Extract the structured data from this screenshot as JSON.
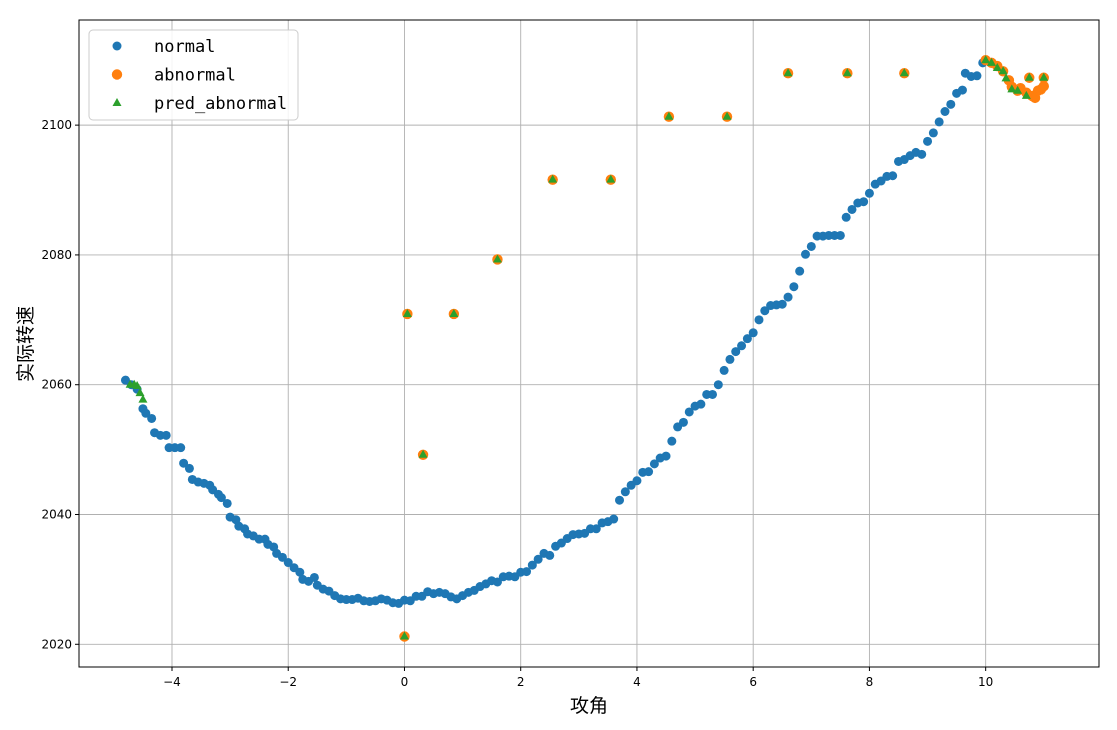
{
  "chart_data": {
    "type": "scatter",
    "xlabel": "攻角",
    "ylabel": "实际转速",
    "xlim": [
      -5.6,
      11.95
    ],
    "ylim": [
      2016.5,
      2116.2
    ],
    "x_ticks": [
      -4,
      -2,
      0,
      2,
      4,
      6,
      8,
      10
    ],
    "y_ticks": [
      2020,
      2040,
      2060,
      2080,
      2100
    ],
    "grid": true,
    "legend_position": "top-left",
    "colors": {
      "normal": "#1f77b4",
      "abnormal": "#ff7f0e",
      "pred_abnormal": "#2ca02c"
    },
    "series": [
      {
        "name": "normal",
        "marker": "circle",
        "points": [
          [
            -4.8,
            2060.7
          ],
          [
            -4.7,
            2060.0
          ],
          [
            -4.6,
            2059.3
          ],
          [
            -4.5,
            2056.3
          ],
          [
            -4.45,
            2055.6
          ],
          [
            -4.35,
            2054.8
          ],
          [
            -4.3,
            2052.6
          ],
          [
            -4.2,
            2052.2
          ],
          [
            -4.1,
            2052.2
          ],
          [
            -4.05,
            2050.3
          ],
          [
            -3.95,
            2050.3
          ],
          [
            -3.85,
            2050.3
          ],
          [
            -3.8,
            2047.9
          ],
          [
            -3.7,
            2047.1
          ],
          [
            -3.65,
            2045.4
          ],
          [
            -3.55,
            2045.0
          ],
          [
            -3.45,
            2044.8
          ],
          [
            -3.35,
            2044.5
          ],
          [
            -3.3,
            2043.8
          ],
          [
            -3.2,
            2043.1
          ],
          [
            -3.15,
            2042.6
          ],
          [
            -3.05,
            2041.7
          ],
          [
            -3.0,
            2039.6
          ],
          [
            -2.9,
            2039.2
          ],
          [
            -2.85,
            2038.2
          ],
          [
            -2.75,
            2037.8
          ],
          [
            -2.7,
            2037.0
          ],
          [
            -2.6,
            2036.7
          ],
          [
            -2.5,
            2036.2
          ],
          [
            -2.4,
            2036.2
          ],
          [
            -2.35,
            2035.4
          ],
          [
            -2.25,
            2035.0
          ],
          [
            -2.2,
            2034.0
          ],
          [
            -2.1,
            2033.4
          ],
          [
            -2.0,
            2032.6
          ],
          [
            -1.9,
            2031.8
          ],
          [
            -1.8,
            2031.1
          ],
          [
            -1.75,
            2030.0
          ],
          [
            -1.65,
            2029.7
          ],
          [
            -1.55,
            2030.3
          ],
          [
            -1.5,
            2029.1
          ],
          [
            -1.4,
            2028.5
          ],
          [
            -1.3,
            2028.2
          ],
          [
            -1.2,
            2027.5
          ],
          [
            -1.1,
            2027.0
          ],
          [
            -1.0,
            2026.9
          ],
          [
            -0.9,
            2026.9
          ],
          [
            -0.8,
            2027.1
          ],
          [
            -0.7,
            2026.7
          ],
          [
            -0.6,
            2026.6
          ],
          [
            -0.5,
            2026.7
          ],
          [
            -0.4,
            2027.0
          ],
          [
            -0.3,
            2026.8
          ],
          [
            -0.2,
            2026.4
          ],
          [
            -0.1,
            2026.3
          ],
          [
            0.0,
            2026.8
          ],
          [
            0.1,
            2026.7
          ],
          [
            0.2,
            2027.4
          ],
          [
            0.3,
            2027.4
          ],
          [
            0.4,
            2028.1
          ],
          [
            0.5,
            2027.8
          ],
          [
            0.6,
            2028.0
          ],
          [
            0.7,
            2027.8
          ],
          [
            0.8,
            2027.3
          ],
          [
            0.9,
            2027.0
          ],
          [
            1.0,
            2027.5
          ],
          [
            1.1,
            2028.0
          ],
          [
            1.2,
            2028.3
          ],
          [
            1.3,
            2028.9
          ],
          [
            1.4,
            2029.3
          ],
          [
            1.5,
            2029.8
          ],
          [
            1.6,
            2029.6
          ],
          [
            1.7,
            2030.4
          ],
          [
            1.8,
            2030.5
          ],
          [
            1.9,
            2030.4
          ],
          [
            2.0,
            2031.1
          ],
          [
            2.1,
            2031.2
          ],
          [
            2.2,
            2032.2
          ],
          [
            2.3,
            2033.1
          ],
          [
            2.4,
            2034.0
          ],
          [
            2.5,
            2033.7
          ],
          [
            2.6,
            2035.1
          ],
          [
            2.7,
            2035.6
          ],
          [
            2.8,
            2036.3
          ],
          [
            2.9,
            2036.9
          ],
          [
            3.0,
            2037.0
          ],
          [
            3.1,
            2037.1
          ],
          [
            3.2,
            2037.8
          ],
          [
            3.3,
            2037.8
          ],
          [
            3.4,
            2038.7
          ],
          [
            3.5,
            2038.9
          ],
          [
            3.6,
            2039.3
          ],
          [
            3.7,
            2042.2
          ],
          [
            3.8,
            2043.5
          ],
          [
            3.9,
            2044.5
          ],
          [
            4.0,
            2045.2
          ],
          [
            4.1,
            2046.5
          ],
          [
            4.2,
            2046.6
          ],
          [
            4.3,
            2047.8
          ],
          [
            4.4,
            2048.7
          ],
          [
            4.5,
            2049.0
          ],
          [
            4.6,
            2051.3
          ],
          [
            4.7,
            2053.5
          ],
          [
            4.8,
            2054.2
          ],
          [
            4.9,
            2055.8
          ],
          [
            5.0,
            2056.7
          ],
          [
            5.1,
            2057.0
          ],
          [
            5.2,
            2058.5
          ],
          [
            5.3,
            2058.5
          ],
          [
            5.4,
            2060.0
          ],
          [
            5.5,
            2062.2
          ],
          [
            5.6,
            2063.9
          ],
          [
            5.7,
            2065.1
          ],
          [
            5.8,
            2066.0
          ],
          [
            5.9,
            2067.1
          ],
          [
            6.0,
            2068.0
          ],
          [
            6.1,
            2070.0
          ],
          [
            6.2,
            2071.4
          ],
          [
            6.3,
            2072.2
          ],
          [
            6.4,
            2072.3
          ],
          [
            6.5,
            2072.4
          ],
          [
            6.6,
            2073.5
          ],
          [
            6.7,
            2075.1
          ],
          [
            6.8,
            2077.5
          ],
          [
            6.9,
            2080.1
          ],
          [
            7.0,
            2081.3
          ],
          [
            7.1,
            2082.9
          ],
          [
            7.2,
            2082.9
          ],
          [
            7.3,
            2083.0
          ],
          [
            7.4,
            2083.0
          ],
          [
            7.5,
            2083.0
          ],
          [
            7.6,
            2085.8
          ],
          [
            7.7,
            2087.0
          ],
          [
            7.8,
            2088.0
          ],
          [
            7.9,
            2088.2
          ],
          [
            8.0,
            2089.5
          ],
          [
            8.1,
            2090.9
          ],
          [
            8.2,
            2091.4
          ],
          [
            8.3,
            2092.1
          ],
          [
            8.4,
            2092.2
          ],
          [
            8.5,
            2094.4
          ],
          [
            8.6,
            2094.7
          ],
          [
            8.7,
            2095.3
          ],
          [
            8.8,
            2095.8
          ],
          [
            8.9,
            2095.5
          ],
          [
            9.0,
            2097.5
          ],
          [
            9.1,
            2098.8
          ],
          [
            9.2,
            2100.5
          ],
          [
            9.3,
            2102.1
          ],
          [
            9.4,
            2103.2
          ],
          [
            9.5,
            2104.9
          ],
          [
            9.6,
            2105.4
          ],
          [
            9.65,
            2108.0
          ],
          [
            9.75,
            2107.5
          ],
          [
            9.85,
            2107.6
          ],
          [
            9.95,
            2109.6
          ]
        ]
      },
      {
        "name": "abnormal",
        "marker": "circle",
        "points": [
          [
            0.0,
            2021.2
          ],
          [
            0.05,
            2070.9
          ],
          [
            0.32,
            2049.2
          ],
          [
            0.85,
            2070.9
          ],
          [
            1.6,
            2079.3
          ],
          [
            2.55,
            2091.6
          ],
          [
            3.55,
            2091.6
          ],
          [
            4.55,
            2101.3
          ],
          [
            5.55,
            2101.3
          ],
          [
            6.6,
            2108.0
          ],
          [
            7.62,
            2108.0
          ],
          [
            8.6,
            2108.0
          ],
          [
            10.0,
            2110.0
          ],
          [
            10.1,
            2109.6
          ],
          [
            10.2,
            2109.1
          ],
          [
            10.3,
            2108.3
          ],
          [
            10.4,
            2106.9
          ],
          [
            10.45,
            2105.9
          ],
          [
            10.55,
            2105.3
          ],
          [
            10.6,
            2105.7
          ],
          [
            10.7,
            2105.0
          ],
          [
            10.75,
            2107.3
          ],
          [
            10.8,
            2104.5
          ],
          [
            10.85,
            2104.2
          ],
          [
            10.9,
            2105.3
          ],
          [
            10.95,
            2105.5
          ],
          [
            11.0,
            2106.0
          ],
          [
            11.0,
            2107.3
          ]
        ]
      },
      {
        "name": "pred_abnormal",
        "marker": "triangle",
        "points": [
          [
            -4.72,
            2060.0
          ],
          [
            -4.65,
            2060.0
          ],
          [
            -4.6,
            2059.8
          ],
          [
            -4.55,
            2058.7
          ],
          [
            -4.5,
            2057.7
          ],
          [
            0.0,
            2021.2
          ],
          [
            0.05,
            2070.9
          ],
          [
            0.32,
            2049.2
          ],
          [
            0.85,
            2070.9
          ],
          [
            1.6,
            2079.3
          ],
          [
            2.55,
            2091.6
          ],
          [
            3.55,
            2091.6
          ],
          [
            4.55,
            2101.3
          ],
          [
            5.55,
            2101.3
          ],
          [
            6.6,
            2108.0
          ],
          [
            7.62,
            2108.0
          ],
          [
            8.6,
            2108.0
          ],
          [
            10.0,
            2110.0
          ],
          [
            10.1,
            2109.6
          ],
          [
            10.2,
            2108.8
          ],
          [
            10.3,
            2108.3
          ],
          [
            10.35,
            2107.2
          ],
          [
            10.45,
            2105.5
          ],
          [
            10.55,
            2105.3
          ],
          [
            10.7,
            2104.5
          ],
          [
            10.75,
            2107.3
          ],
          [
            11.0,
            2107.3
          ]
        ]
      }
    ]
  }
}
